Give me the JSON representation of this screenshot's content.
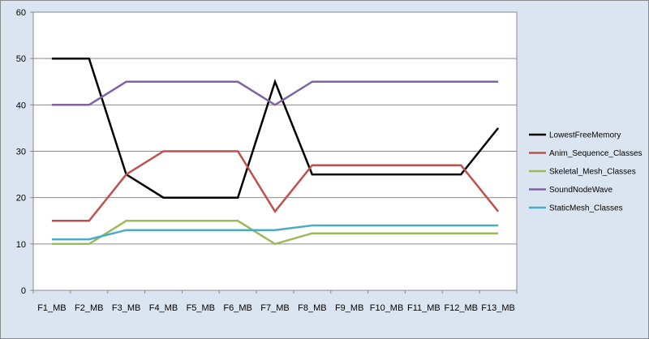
{
  "chart_data": {
    "type": "line",
    "title": "",
    "xlabel": "",
    "ylabel": "",
    "categories": [
      "F1_MB",
      "F2_MB",
      "F3_MB",
      "F4_MB",
      "F5_MB",
      "F6_MB",
      "F7_MB",
      "F8_MB",
      "F9_MB",
      "F10_MB",
      "F11_MB",
      "F12_MB",
      "F13_MB"
    ],
    "ylim": [
      0,
      60
    ],
    "yticks": [
      0,
      10,
      20,
      30,
      40,
      50,
      60
    ],
    "grid": "horizontal",
    "legend_position": "right",
    "series": [
      {
        "name": "LowestFreeMemory",
        "color": "#000000",
        "values": [
          50,
          50,
          25,
          20,
          20,
          20,
          45,
          25,
          25,
          25,
          25,
          25,
          35
        ]
      },
      {
        "name": "Anim_Sequence_Classes",
        "color": "#c0504d",
        "values": [
          15,
          15,
          25,
          30,
          30,
          30,
          17,
          27,
          27,
          27,
          27,
          27,
          17
        ]
      },
      {
        "name": "Skeletal_Mesh_Classes",
        "color": "#9bbb59",
        "values": [
          10,
          10,
          15,
          15,
          15,
          15,
          10,
          12.3,
          12.3,
          12.3,
          12.3,
          12.3,
          12.3
        ]
      },
      {
        "name": "SoundNodeWave",
        "color": "#8064a2",
        "values": [
          40,
          40,
          45,
          45,
          45,
          45,
          40,
          45,
          45,
          45,
          45,
          45,
          45
        ]
      },
      {
        "name": "StaticMesh_Classes",
        "color": "#4bacc6",
        "values": [
          11,
          11,
          13,
          13,
          13,
          13,
          13,
          14,
          14,
          14,
          14,
          14,
          14
        ]
      }
    ]
  }
}
